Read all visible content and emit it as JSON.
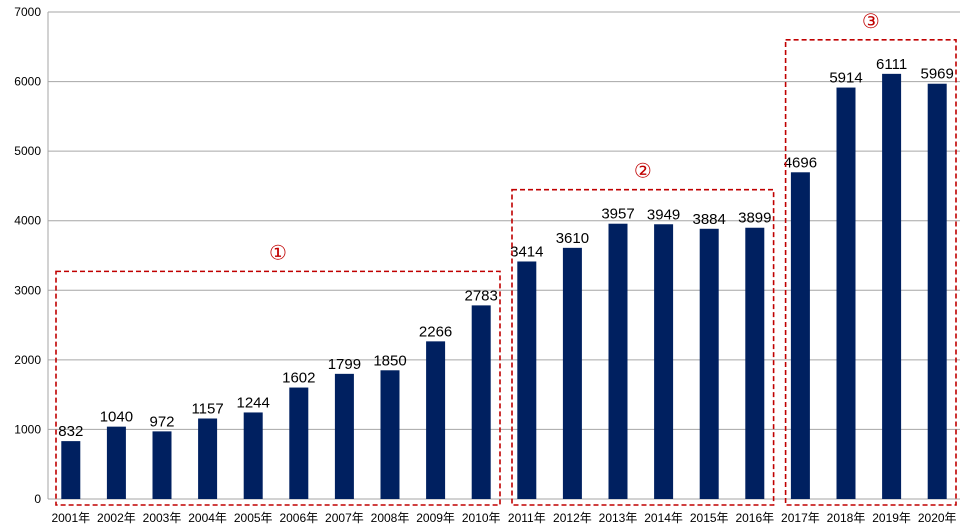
{
  "chart_data": {
    "type": "bar",
    "title": "",
    "xlabel": "",
    "ylabel": "",
    "ylim": [
      0,
      7000
    ],
    "yticks": [
      0,
      1000,
      2000,
      3000,
      4000,
      5000,
      6000,
      7000
    ],
    "grid": true,
    "categories": [
      "2001年",
      "2002年",
      "2003年",
      "2004年",
      "2005年",
      "2006年",
      "2007年",
      "2008年",
      "2009年",
      "2010年",
      "2011年",
      "2012年",
      "2013年",
      "2014年",
      "2015年",
      "2016年",
      "2017年",
      "2018年",
      "2019年",
      "2020年"
    ],
    "series": [
      {
        "name": "",
        "values": [
          832,
          1040,
          972,
          1157,
          1244,
          1602,
          1799,
          1850,
          2266,
          2783,
          3414,
          3610,
          3957,
          3949,
          3884,
          3899,
          4696,
          5914,
          6111,
          5969
        ]
      }
    ],
    "annotations": [
      {
        "label": "①",
        "from_index": 0,
        "to_index": 9
      },
      {
        "label": "②",
        "from_index": 10,
        "to_index": 15
      },
      {
        "label": "③",
        "from_index": 16,
        "to_index": 19
      }
    ]
  },
  "colors": {
    "bar": "#002060",
    "grid": "#a6a6a6",
    "annotation": "#c00000"
  }
}
